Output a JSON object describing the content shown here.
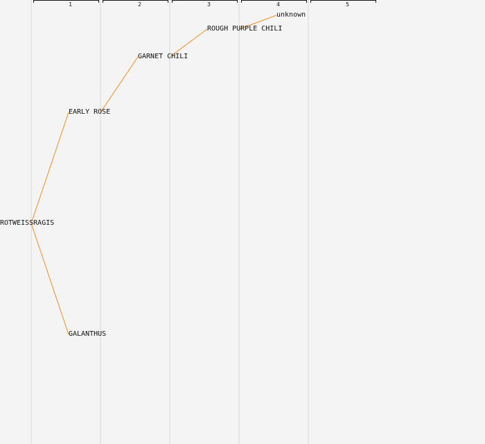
{
  "generations": [
    "1",
    "2",
    "3",
    "4",
    "5"
  ],
  "nodes": {
    "root": "ROTWEISSRAGIS",
    "early_rose": "EARLY ROSE",
    "galanthus": "GALANTHUS",
    "garnet_chili": "GARNET CHILI",
    "rough_purple_chili": "ROUGH PURPLE CHILI",
    "unknown": "unknown"
  },
  "colors": {
    "background": "#f4f4f4",
    "link": "#f08c1e",
    "column_line": "#e6e6e6"
  }
}
